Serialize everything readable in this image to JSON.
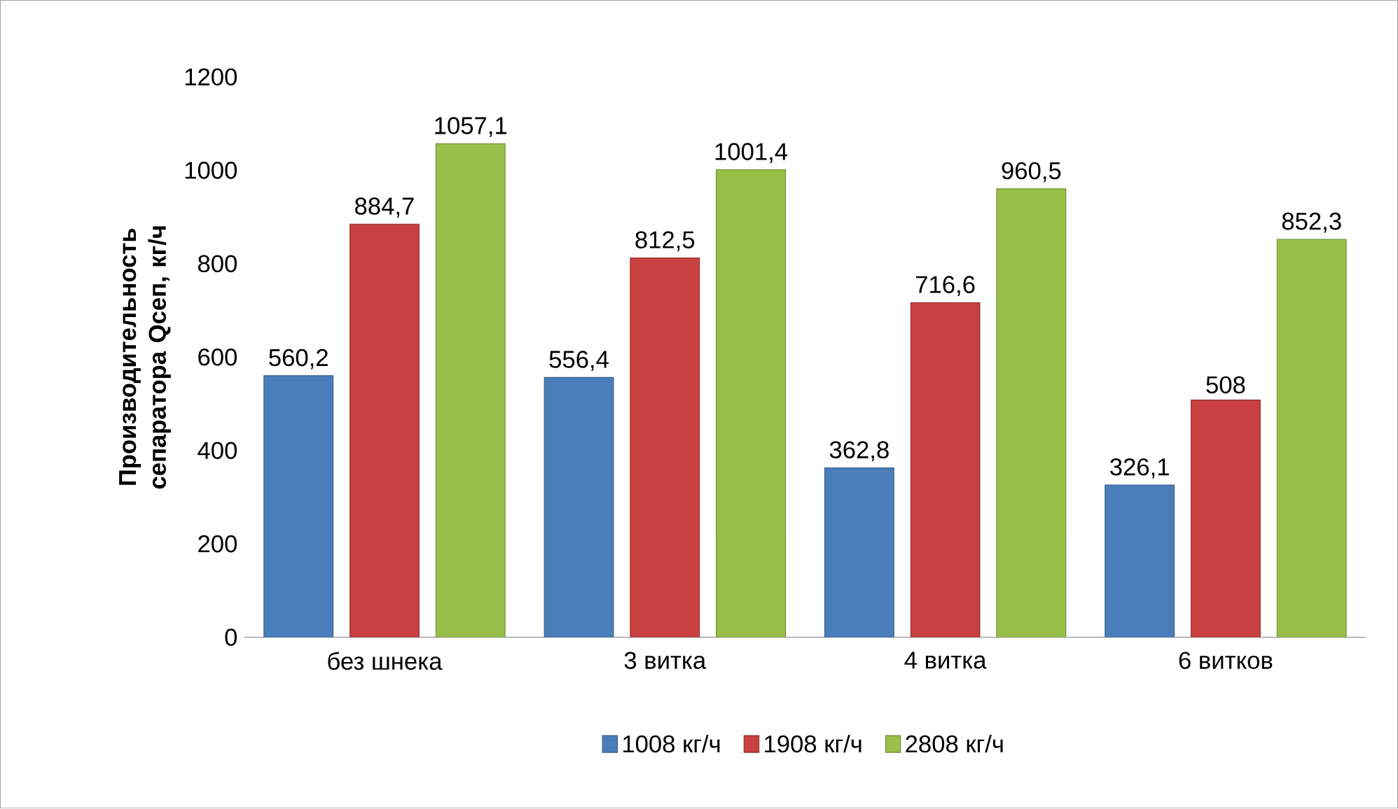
{
  "chart_data": {
    "type": "bar",
    "ylabel": "Производительность сепаратора Qсеп, кг/ч",
    "categories": [
      "без шнека",
      "3 витка",
      "4 витка",
      "6 витков"
    ],
    "series": [
      {
        "name": "1008 кг/ч",
        "color": "#4a7ebb",
        "values": [
          560.2,
          556.4,
          362.8,
          326.1
        ],
        "value_labels": [
          "560,2",
          "556,4",
          "362,8",
          "326,1"
        ]
      },
      {
        "name": "1908 кг/ч",
        "color": "#c84040",
        "values": [
          884.7,
          812.5,
          716.6,
          508
        ],
        "value_labels": [
          "884,7",
          "812,5",
          "716,6",
          "508"
        ]
      },
      {
        "name": "2808 кг/ч",
        "color": "#98c048",
        "values": [
          1057.1,
          1001.4,
          960.5,
          852.3
        ],
        "value_labels": [
          "1057,1",
          "1001,4",
          "960,5",
          "852,3"
        ]
      }
    ],
    "ylim": [
      0,
      1200
    ],
    "yticks": [
      0,
      200,
      400,
      600,
      800,
      1000,
      1200
    ],
    "legend": "bottom"
  }
}
